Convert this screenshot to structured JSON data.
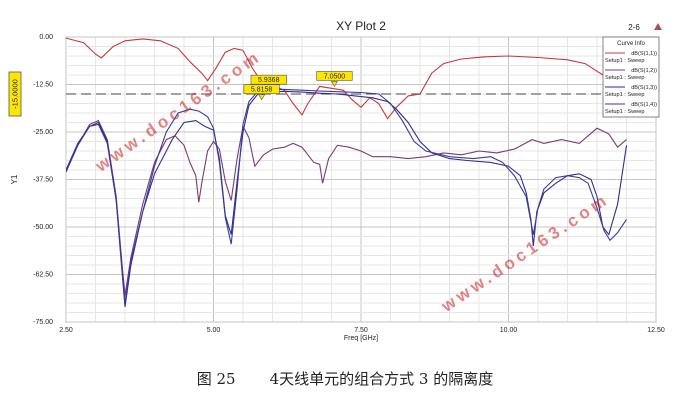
{
  "chart_data": {
    "type": "line",
    "title": "XY Plot 2",
    "corner_label": "2-6",
    "xlabel": "Freq [GHz]",
    "ylabel": "Y1",
    "xlim": [
      2.5,
      12.5
    ],
    "ylim": [
      -75,
      0
    ],
    "x_ticks": [
      2.5,
      5.0,
      7.5,
      10.0,
      12.5
    ],
    "x_tick_labels": [
      "2.50",
      "5.00",
      "7.50",
      "10.00",
      "12.50"
    ],
    "y_ticks": [
      0,
      -12.5,
      -25,
      -37.5,
      -50,
      -62.5,
      -75
    ],
    "y_tick_labels": [
      "0.00",
      "-12.50",
      "-25.00",
      "-37.50",
      "-50.00",
      "-62.50",
      "-75.00"
    ],
    "grid": true,
    "legend_position": "top-right",
    "legend_title": "Curve Info",
    "series": [
      {
        "name": "dB(S(1,1))",
        "setup": "Setup1 : Sweep",
        "color": "#c4393c",
        "points": [
          [
            2.5,
            -0.3
          ],
          [
            2.8,
            -1.5
          ],
          [
            3.0,
            -4.5
          ],
          [
            3.1,
            -5.5
          ],
          [
            3.3,
            -2.5
          ],
          [
            3.5,
            -1.0
          ],
          [
            3.8,
            -0.5
          ],
          [
            4.1,
            -1.0
          ],
          [
            4.4,
            -3.0
          ],
          [
            4.6,
            -6.5
          ],
          [
            4.8,
            -9.5
          ],
          [
            4.9,
            -11.5
          ],
          [
            5.05,
            -8.0
          ],
          [
            5.2,
            -4.0
          ],
          [
            5.35,
            -3.0
          ],
          [
            5.5,
            -3.5
          ],
          [
            5.65,
            -8.0
          ],
          [
            5.8,
            -11.5
          ],
          [
            5.9,
            -13.5
          ],
          [
            6.0,
            -12.8
          ],
          [
            6.2,
            -14.0
          ],
          [
            6.35,
            -17.5
          ],
          [
            6.5,
            -20.5
          ],
          [
            6.6,
            -17.5
          ],
          [
            6.8,
            -13.0
          ],
          [
            7.0,
            -13.5
          ],
          [
            7.2,
            -14.0
          ],
          [
            7.35,
            -16.5
          ],
          [
            7.5,
            -18.5
          ],
          [
            7.65,
            -16.0
          ],
          [
            7.8,
            -17.5
          ],
          [
            7.95,
            -21.5
          ],
          [
            8.1,
            -18.5
          ],
          [
            8.3,
            -15.5
          ],
          [
            8.5,
            -15.0
          ],
          [
            8.7,
            -9.5
          ],
          [
            8.9,
            -7.0
          ],
          [
            9.2,
            -5.8
          ],
          [
            9.6,
            -5.2
          ],
          [
            10.0,
            -5.0
          ],
          [
            10.5,
            -5.4
          ],
          [
            11.0,
            -6.0
          ],
          [
            11.3,
            -7.0
          ],
          [
            11.6,
            -10.0
          ],
          [
            11.75,
            -15.0
          ],
          [
            11.85,
            -20.5
          ],
          [
            11.95,
            -17.5
          ],
          [
            12.0,
            -16.0
          ]
        ]
      },
      {
        "name": "dB(S(1,2))",
        "setup": "Setup1 : Sweep",
        "color": "#7a3a78",
        "points": [
          [
            2.5,
            -35.5
          ],
          [
            2.7,
            -28.5
          ],
          [
            2.9,
            -23.0
          ],
          [
            3.05,
            -22.0
          ],
          [
            3.2,
            -27.0
          ],
          [
            3.35,
            -42.0
          ],
          [
            3.45,
            -60.0
          ],
          [
            3.5,
            -68.0
          ],
          [
            3.6,
            -58.0
          ],
          [
            3.8,
            -44.0
          ],
          [
            4.0,
            -33.0
          ],
          [
            4.2,
            -27.0
          ],
          [
            4.35,
            -26.0
          ],
          [
            4.5,
            -28.5
          ],
          [
            4.6,
            -33.0
          ],
          [
            4.7,
            -36.5
          ],
          [
            4.75,
            -43.5
          ],
          [
            4.8,
            -38.5
          ],
          [
            4.9,
            -30.0
          ],
          [
            5.0,
            -27.5
          ],
          [
            5.1,
            -29.5
          ],
          [
            5.2,
            -38.0
          ],
          [
            5.3,
            -43.0
          ],
          [
            5.4,
            -32.0
          ],
          [
            5.5,
            -23.5
          ],
          [
            5.6,
            -26.5
          ],
          [
            5.7,
            -34.0
          ],
          [
            5.85,
            -31.0
          ],
          [
            6.0,
            -29.5
          ],
          [
            6.2,
            -29.0
          ],
          [
            6.35,
            -28.0
          ],
          [
            6.5,
            -29.0
          ],
          [
            6.7,
            -33.0
          ],
          [
            6.8,
            -33.5
          ],
          [
            6.85,
            -38.5
          ],
          [
            6.95,
            -32.0
          ],
          [
            7.1,
            -28.5
          ],
          [
            7.3,
            -29.0
          ],
          [
            7.5,
            -30.0
          ],
          [
            7.7,
            -31.5
          ],
          [
            8.0,
            -31.5
          ],
          [
            8.3,
            -32.0
          ],
          [
            8.6,
            -31.5
          ],
          [
            8.9,
            -30.5
          ],
          [
            9.2,
            -31.0
          ],
          [
            9.5,
            -30.0
          ],
          [
            9.8,
            -30.5
          ],
          [
            10.1,
            -29.5
          ],
          [
            10.4,
            -27.0
          ],
          [
            10.6,
            -28.0
          ],
          [
            10.9,
            -27.0
          ],
          [
            11.2,
            -28.0
          ],
          [
            11.5,
            -24.0
          ],
          [
            11.7,
            -25.5
          ],
          [
            11.85,
            -29.0
          ],
          [
            12.0,
            -27.0
          ]
        ]
      },
      {
        "name": "dB(S(1,3))",
        "setup": "Setup1 : Sweep",
        "color": "#2e2e8c",
        "points": [
          [
            2.5,
            -35.0
          ],
          [
            2.7,
            -28.0
          ],
          [
            2.9,
            -23.5
          ],
          [
            3.05,
            -22.5
          ],
          [
            3.2,
            -27.5
          ],
          [
            3.35,
            -43.0
          ],
          [
            3.45,
            -62.0
          ],
          [
            3.5,
            -71.0
          ],
          [
            3.6,
            -60.0
          ],
          [
            3.8,
            -46.0
          ],
          [
            4.0,
            -36.0
          ],
          [
            4.3,
            -27.0
          ],
          [
            4.5,
            -22.5
          ],
          [
            4.7,
            -22.0
          ],
          [
            4.85,
            -23.5
          ],
          [
            5.0,
            -24.5
          ],
          [
            5.1,
            -32.0
          ],
          [
            5.2,
            -47.0
          ],
          [
            5.3,
            -52.0
          ],
          [
            5.4,
            -38.0
          ],
          [
            5.5,
            -25.0
          ],
          [
            5.6,
            -18.0
          ],
          [
            5.75,
            -15.0
          ],
          [
            5.95,
            -14.5
          ],
          [
            6.2,
            -14.3
          ],
          [
            6.5,
            -14.5
          ],
          [
            6.8,
            -14.8
          ],
          [
            7.1,
            -15.0
          ],
          [
            7.4,
            -15.5
          ],
          [
            7.7,
            -16.0
          ],
          [
            7.95,
            -17.0
          ],
          [
            8.1,
            -19.0
          ],
          [
            8.3,
            -22.5
          ],
          [
            8.5,
            -27.5
          ],
          [
            8.7,
            -30.5
          ],
          [
            9.0,
            -32.0
          ],
          [
            9.3,
            -32.5
          ],
          [
            9.7,
            -33.0
          ],
          [
            10.0,
            -34.0
          ],
          [
            10.2,
            -36.5
          ],
          [
            10.3,
            -41.0
          ],
          [
            10.38,
            -48.0
          ],
          [
            10.42,
            -55.0
          ],
          [
            10.48,
            -46.0
          ],
          [
            10.6,
            -41.0
          ],
          [
            10.8,
            -38.5
          ],
          [
            11.0,
            -36.5
          ],
          [
            11.2,
            -36.0
          ],
          [
            11.4,
            -37.5
          ],
          [
            11.5,
            -42.0
          ],
          [
            11.6,
            -50.0
          ],
          [
            11.7,
            -52.0
          ],
          [
            11.85,
            -44.0
          ],
          [
            12.0,
            -28.5
          ]
        ]
      },
      {
        "name": "dB(S(1,4))",
        "setup": "Setup1 : Sweep",
        "color": "#3a3a9a",
        "points": [
          [
            2.5,
            -35.5
          ],
          [
            2.7,
            -28.5
          ],
          [
            2.9,
            -23.5
          ],
          [
            3.05,
            -23.0
          ],
          [
            3.2,
            -28.0
          ],
          [
            3.35,
            -43.0
          ],
          [
            3.45,
            -61.0
          ],
          [
            3.5,
            -70.0
          ],
          [
            3.6,
            -59.0
          ],
          [
            3.8,
            -46.0
          ],
          [
            4.0,
            -34.0
          ],
          [
            4.2,
            -25.0
          ],
          [
            4.4,
            -20.0
          ],
          [
            4.6,
            -19.0
          ],
          [
            4.75,
            -19.5
          ],
          [
            4.9,
            -21.0
          ],
          [
            5.0,
            -24.0
          ],
          [
            5.1,
            -33.0
          ],
          [
            5.2,
            -47.5
          ],
          [
            5.3,
            -54.5
          ],
          [
            5.4,
            -40.0
          ],
          [
            5.5,
            -23.0
          ],
          [
            5.6,
            -17.0
          ],
          [
            5.75,
            -14.3
          ],
          [
            5.95,
            -13.8
          ],
          [
            6.2,
            -13.8
          ],
          [
            6.5,
            -14.0
          ],
          [
            6.8,
            -14.2
          ],
          [
            7.1,
            -14.4
          ],
          [
            7.5,
            -14.6
          ],
          [
            7.8,
            -15.0
          ],
          [
            8.0,
            -17.5
          ],
          [
            8.2,
            -22.0
          ],
          [
            8.4,
            -27.5
          ],
          [
            8.6,
            -30.0
          ],
          [
            9.0,
            -31.5
          ],
          [
            9.4,
            -32.0
          ],
          [
            9.7,
            -31.5
          ],
          [
            9.9,
            -33.0
          ],
          [
            10.1,
            -36.5
          ],
          [
            10.3,
            -42.0
          ],
          [
            10.42,
            -52.0
          ],
          [
            10.5,
            -45.0
          ],
          [
            10.6,
            -40.0
          ],
          [
            10.8,
            -37.0
          ],
          [
            11.0,
            -36.5
          ],
          [
            11.2,
            -37.0
          ],
          [
            11.35,
            -38.5
          ],
          [
            11.5,
            -45.0
          ],
          [
            11.62,
            -51.0
          ],
          [
            11.72,
            -53.5
          ],
          [
            11.85,
            -51.5
          ],
          [
            12.0,
            -48.0
          ]
        ]
      }
    ],
    "reference_line": {
      "value": -15.0,
      "label": "-15.0000"
    },
    "markers": [
      {
        "x": 5.9368,
        "y": -14.0,
        "label": "5.9368"
      },
      {
        "x": 5.8158,
        "y": -16.5,
        "label": "5.8158"
      },
      {
        "x": 7.05,
        "y": -13.0,
        "label": "7.0500"
      },
      {
        "x": 11.75,
        "y": -13.0,
        "label": "1"
      }
    ]
  },
  "watermarks": [
    "www.doc163.com",
    "www.doc163.com"
  ],
  "caption": {
    "figure_number": "图 25",
    "text": "4天线单元的组合方式 3 的隔离度"
  }
}
